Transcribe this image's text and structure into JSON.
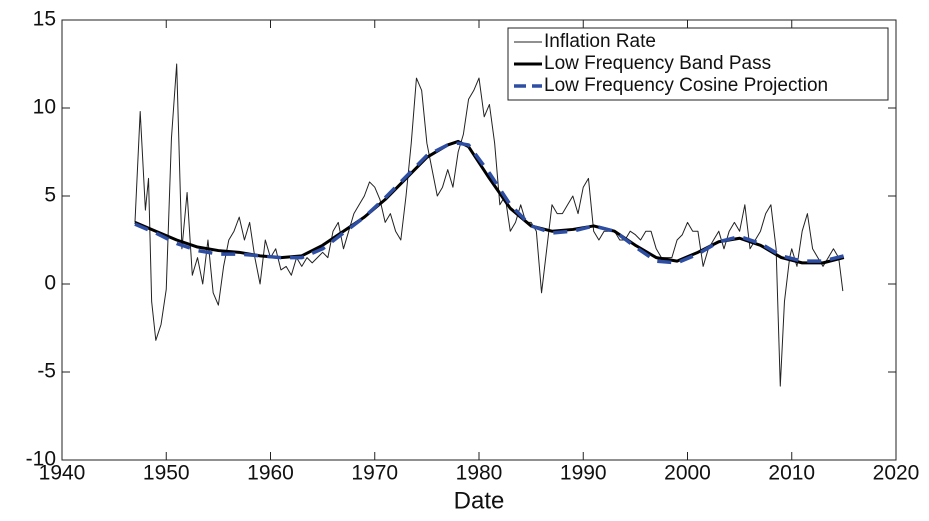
{
  "chart_data": {
    "type": "line",
    "xlabel": "Date",
    "xlim": [
      1940,
      2020
    ],
    "xticks": [
      1940,
      1950,
      1960,
      1970,
      1980,
      1990,
      2000,
      2010,
      2020
    ],
    "ylim": [
      -10,
      15
    ],
    "yticks": [
      -10,
      -5,
      0,
      5,
      10,
      15
    ],
    "legend": "upper right",
    "series": [
      {
        "name": "Inflation Rate",
        "color": "#222222",
        "x": [
          1947,
          1947.5,
          1948,
          1948.3,
          1948.6,
          1949,
          1949.5,
          1950,
          1950.5,
          1951,
          1951.5,
          1952,
          1952.5,
          1953,
          1953.5,
          1954,
          1954.5,
          1955,
          1955.5,
          1956,
          1956.5,
          1957,
          1957.5,
          1958,
          1958.5,
          1959,
          1959.5,
          1960,
          1960.5,
          1961,
          1961.5,
          1962,
          1962.5,
          1963,
          1963.5,
          1964,
          1964.5,
          1965,
          1965.5,
          1966,
          1966.5,
          1967,
          1967.5,
          1968,
          1968.5,
          1969,
          1969.5,
          1970,
          1970.5,
          1971,
          1971.5,
          1972,
          1972.5,
          1973,
          1973.5,
          1974,
          1974.5,
          1975,
          1975.5,
          1976,
          1976.5,
          1977,
          1977.5,
          1978,
          1978.5,
          1979,
          1979.5,
          1980,
          1980.5,
          1981,
          1981.5,
          1982,
          1982.5,
          1983,
          1983.5,
          1984,
          1984.5,
          1985,
          1985.5,
          1986,
          1986.5,
          1987,
          1987.5,
          1988,
          1988.5,
          1989,
          1989.5,
          1990,
          1990.5,
          1991,
          1991.5,
          1992,
          1992.5,
          1993,
          1993.5,
          1994,
          1994.5,
          1995,
          1995.5,
          1996,
          1996.5,
          1997,
          1997.5,
          1998,
          1998.5,
          1999,
          1999.5,
          2000,
          2000.5,
          2001,
          2001.5,
          2002,
          2002.5,
          2003,
          2003.5,
          2004,
          2004.5,
          2005,
          2005.5,
          2006,
          2006.5,
          2007,
          2007.5,
          2008,
          2008.5,
          2008.9,
          2009.3,
          2009.8,
          2010,
          2010.5,
          2011,
          2011.5,
          2012,
          2012.5,
          2013,
          2013.5,
          2014,
          2014.5,
          2014.9
        ],
        "values": [
          3.5,
          9.8,
          4.2,
          6.0,
          -1.0,
          -3.2,
          -2.3,
          -0.3,
          8.3,
          12.5,
          2.0,
          5.2,
          0.5,
          1.5,
          0,
          2.5,
          -0.5,
          -1.2,
          1.0,
          2.5,
          3.0,
          3.8,
          2.5,
          3.5,
          1.5,
          0,
          2.5,
          1.5,
          2.0,
          0.8,
          1.0,
          0.5,
          1.5,
          1.0,
          1.5,
          1.2,
          1.5,
          1.8,
          1.5,
          3.0,
          3.5,
          2.0,
          3.0,
          4.0,
          4.5,
          5.0,
          5.8,
          5.5,
          4.8,
          3.5,
          4.0,
          3.0,
          2.5,
          5.0,
          8.0,
          11.7,
          11.0,
          8.0,
          6.5,
          5.0,
          5.5,
          6.5,
          5.5,
          7.5,
          8.5,
          10.5,
          11.0,
          11.7,
          9.5,
          10.2,
          8.0,
          4.5,
          5.0,
          3.0,
          3.5,
          4.5,
          3.5,
          3.5,
          3.0,
          -0.5,
          2.0,
          4.5,
          4.0,
          4.0,
          4.5,
          5.0,
          4.0,
          5.5,
          6.0,
          3.0,
          2.5,
          3.0,
          3.0,
          3.0,
          2.5,
          2.5,
          3.0,
          2.8,
          2.5,
          3.0,
          3.0,
          2.0,
          1.5,
          1.5,
          1.5,
          2.5,
          2.8,
          3.5,
          3.0,
          3.0,
          1.0,
          2.0,
          2.5,
          3.0,
          2.0,
          3.0,
          3.5,
          3.0,
          4.5,
          2.0,
          2.5,
          3.0,
          4.0,
          4.5,
          2.0,
          -5.8,
          -1.0,
          1.5,
          2.0,
          1.0,
          3.0,
          4.0,
          2.0,
          1.5,
          1.0,
          1.5,
          2.0,
          1.5,
          -0.4
        ]
      },
      {
        "name": "Low Frequency Band Pass",
        "color": "#000000",
        "x": [
          1947,
          1949,
          1951,
          1953,
          1955,
          1957,
          1959,
          1961,
          1963,
          1965,
          1967,
          1969,
          1971,
          1973,
          1975,
          1977,
          1978,
          1979,
          1981,
          1983,
          1985,
          1987,
          1989,
          1991,
          1993,
          1995,
          1997,
          1999,
          2001,
          2003,
          2005,
          2007,
          2009,
          2011,
          2013,
          2015
        ],
        "values": [
          3.5,
          3.0,
          2.5,
          2.1,
          1.9,
          1.8,
          1.6,
          1.5,
          1.6,
          2.2,
          3.0,
          3.8,
          4.8,
          6.0,
          7.2,
          7.9,
          8.1,
          7.8,
          6.0,
          4.3,
          3.3,
          3.0,
          3.1,
          3.3,
          3.0,
          2.2,
          1.5,
          1.3,
          1.8,
          2.4,
          2.6,
          2.2,
          1.5,
          1.2,
          1.2,
          1.5
        ]
      },
      {
        "name": "Low Frequency Cosine Projection",
        "color": "#2e4ea3",
        "x": [
          1947,
          1949,
          1951,
          1953,
          1955,
          1957,
          1959,
          1961,
          1963,
          1965,
          1967,
          1969,
          1971,
          1973,
          1975,
          1977,
          1978,
          1979,
          1981,
          1983,
          1985,
          1987,
          1989,
          1991,
          1993,
          1995,
          1997,
          1999,
          2001,
          2003,
          2005,
          2007,
          2009,
          2011,
          2013,
          2015
        ],
        "values": [
          3.4,
          2.9,
          2.3,
          1.9,
          1.7,
          1.7,
          1.6,
          1.5,
          1.5,
          2.0,
          2.9,
          3.8,
          4.9,
          6.1,
          7.3,
          7.9,
          8.0,
          7.9,
          6.3,
          4.5,
          3.3,
          2.9,
          3.0,
          3.3,
          3.0,
          2.1,
          1.3,
          1.2,
          1.7,
          2.4,
          2.7,
          2.3,
          1.6,
          1.3,
          1.3,
          1.6
        ]
      }
    ]
  }
}
